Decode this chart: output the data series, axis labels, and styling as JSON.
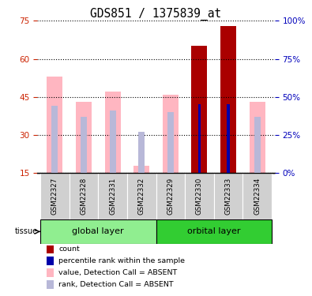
{
  "title": "GDS851 / 1375839_at",
  "samples": [
    "GSM22327",
    "GSM22328",
    "GSM22331",
    "GSM22332",
    "GSM22329",
    "GSM22330",
    "GSM22333",
    "GSM22334"
  ],
  "groups": [
    {
      "name": "global layer",
      "color": "#90EE90",
      "indices": [
        0,
        1,
        2,
        3
      ]
    },
    {
      "name": "orbital layer",
      "color": "#32CD32",
      "indices": [
        4,
        5,
        6,
        7
      ]
    }
  ],
  "ylim_left": [
    15,
    75
  ],
  "ylim_right": [
    0,
    100
  ],
  "yticks_left": [
    15,
    30,
    45,
    60,
    75
  ],
  "yticks_right": [
    0,
    25,
    50,
    75,
    100
  ],
  "left_tick_color": "#CC2200",
  "right_tick_color": "#0000BB",
  "value_absent": [
    53,
    43,
    47,
    18,
    46,
    null,
    null,
    43
  ],
  "rank_absent": [
    44,
    37,
    41,
    27,
    40,
    null,
    null,
    37
  ],
  "count_value": [
    null,
    null,
    null,
    null,
    null,
    65,
    73,
    null
  ],
  "percentile_rank": [
    null,
    null,
    null,
    null,
    null,
    45,
    45,
    null
  ],
  "pink_color": "#FFB6C1",
  "lavender_color": "#B8B8D8",
  "dark_red_color": "#AA0000",
  "blue_color": "#0000AA",
  "legend_items": [
    {
      "color": "#AA0000",
      "label": "count"
    },
    {
      "color": "#0000AA",
      "label": "percentile rank within the sample"
    },
    {
      "color": "#FFB6C1",
      "label": "value, Detection Call = ABSENT"
    },
    {
      "color": "#B8B8D8",
      "label": "rank, Detection Call = ABSENT"
    }
  ]
}
